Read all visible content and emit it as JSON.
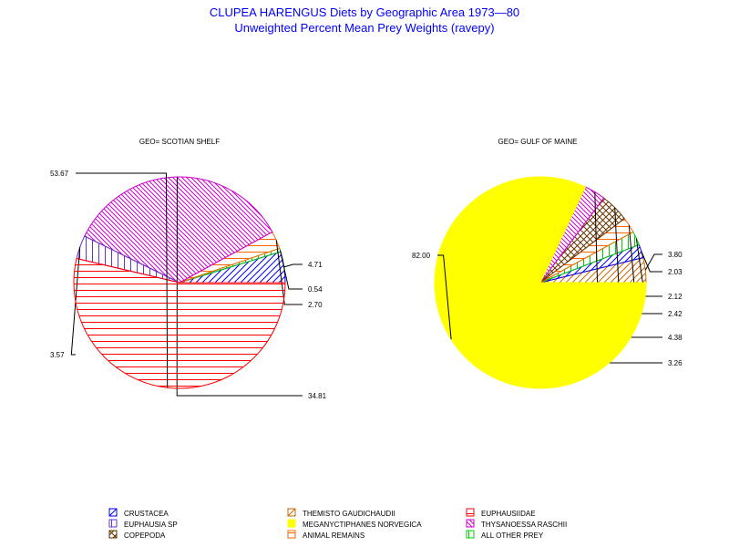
{
  "title": "CLUPEA HARENGUS Diets by Geographic Area 1973—80",
  "subtitle": "Unweighted Percent Mean Prey Weights (ravepy)",
  "categories": [
    {
      "name": "CRUSTACEA",
      "color": "#0000ff",
      "pattern": "diag-up"
    },
    {
      "name": "THEMISTO GAUDICHAUDII",
      "color": "#cc6600",
      "pattern": "diag-up"
    },
    {
      "name": "EUPHAUSIIDAE",
      "color": "#ff0000",
      "pattern": "horizontal"
    },
    {
      "name": "EUPHAUSIA SP",
      "color": "#6633cc",
      "pattern": "vertical"
    },
    {
      "name": "MEGANYCTIPHANES NORVEGICA",
      "color": "#ffff00",
      "pattern": "solid"
    },
    {
      "name": "THYSANOESSA RASCHII",
      "color": "#cc00cc",
      "pattern": "diag-down"
    },
    {
      "name": "COPEPODA",
      "color": "#663300",
      "pattern": "crosshatch"
    },
    {
      "name": "ANIMAL REMAINS",
      "color": "#ff6600",
      "pattern": "horizontal"
    },
    {
      "name": "ALL OTHER PREY",
      "color": "#00cc00",
      "pattern": "vertical"
    }
  ],
  "chart_data": [
    {
      "type": "pie",
      "title": "GEO= SCOTIAN SHELF",
      "slices": [
        {
          "category": "CRUSTACEA",
          "value": 4.71,
          "label": "4.71"
        },
        {
          "category": "ALL OTHER PREY",
          "value": 0.54,
          "label": "0.54"
        },
        {
          "category": "ANIMAL REMAINS",
          "value": 2.7,
          "label": "2.70"
        },
        {
          "category": "THYSANOESSA RASCHII",
          "value": 34.81,
          "label": "34.81"
        },
        {
          "category": "EUPHAUSIA SP",
          "value": 3.57,
          "label": "3.57"
        },
        {
          "category": "EUPHAUSIIDAE",
          "value": 53.67,
          "label": "53.67"
        }
      ]
    },
    {
      "type": "pie",
      "title": "GEO= GULF OF MAINE",
      "slices": [
        {
          "category": "THEMISTO GAUDICHAUDII",
          "value": 3.8,
          "label": "3.80"
        },
        {
          "category": "CRUSTACEA",
          "value": 2.03,
          "label": "2.03"
        },
        {
          "category": "ALL OTHER PREY",
          "value": 2.12,
          "label": "2.12"
        },
        {
          "category": "ANIMAL REMAINS",
          "value": 2.42,
          "label": "2.42"
        },
        {
          "category": "COPEPODA",
          "value": 4.38,
          "label": "4.38"
        },
        {
          "category": "THYSANOESSA RASCHII",
          "value": 3.26,
          "label": "3.26"
        },
        {
          "category": "MEGANYCTIPHANES NORVEGICA",
          "value": 82.0,
          "label": "82.00"
        }
      ]
    }
  ]
}
